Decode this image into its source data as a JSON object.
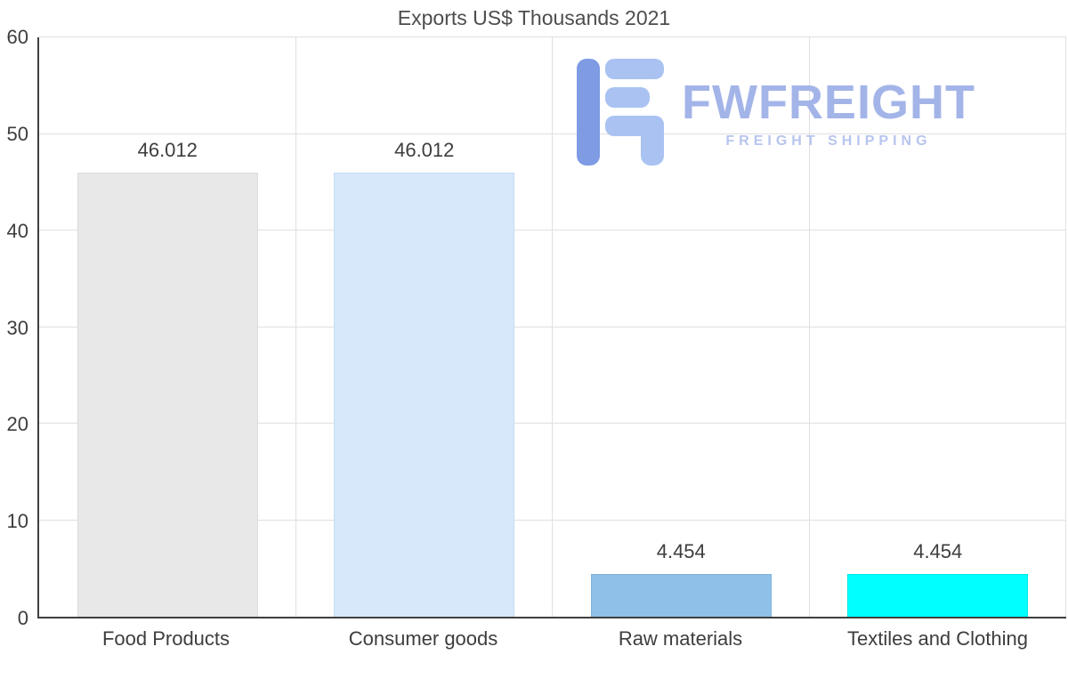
{
  "title": "Exports US$ Thousands 2021",
  "watermark": {
    "brand": "FWFREIGHT",
    "tagline": "FREIGHT SHIPPING",
    "brand_color": "#a3b4e8",
    "tagline_color": "#b7c5ef",
    "logo_dark_blue": "#7e9be4",
    "logo_light_blue": "#a9c2f2"
  },
  "chart_data": {
    "type": "bar",
    "title": "Exports US$ Thousands 2021",
    "categories": [
      "Food Products",
      "Consumer goods",
      "Raw materials",
      "Textiles and Clothing"
    ],
    "values": [
      46.012,
      46.012,
      4.454,
      4.454
    ],
    "value_labels": [
      "46.012",
      "46.012",
      "4.454",
      "4.454"
    ],
    "bar_colors": [
      "#e8e8e8",
      "#d6e8fa",
      "#8fc0e8",
      "#00ffff"
    ],
    "bar_border_colors": [
      "#dadada",
      "#c4dcf4",
      "#7fb3de",
      "#00e6e6"
    ],
    "ylim": [
      0,
      60
    ],
    "yticks": [
      0,
      10,
      20,
      30,
      40,
      50,
      60
    ],
    "grid": true,
    "legend": "none",
    "xlabel": "",
    "ylabel": ""
  }
}
